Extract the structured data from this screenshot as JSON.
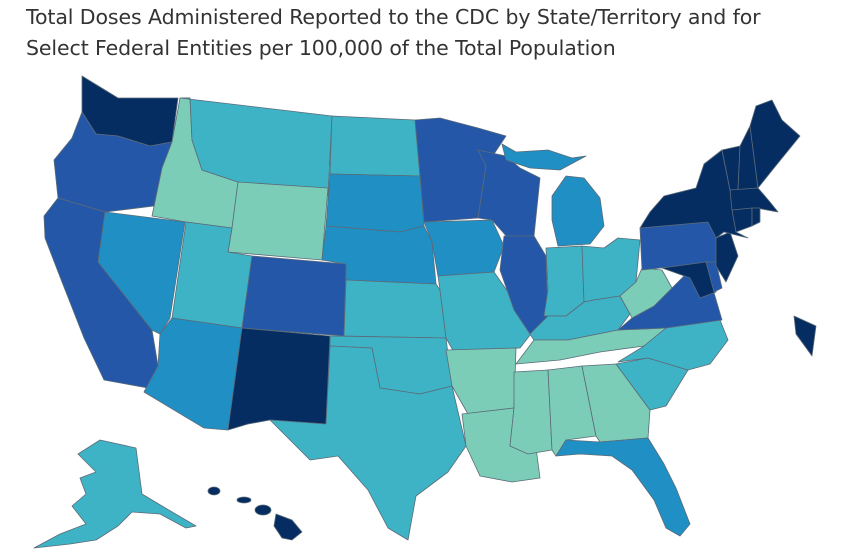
{
  "title_line_1": "Total Doses Administered Reported to the CDC by State/Territory and for",
  "title_line_2": "Select Federal Entities per 100,000 of the Total Population",
  "palette": {
    "lightest": "#7ccdb8",
    "light": "#3fb3c6",
    "medium": "#1f8fc4",
    "dark": "#2457a8",
    "darkest": "#052d62"
  },
  "states": [
    {
      "id": "WA",
      "shade": "darkest"
    },
    {
      "id": "OR",
      "shade": "dark"
    },
    {
      "id": "CA",
      "shade": "dark"
    },
    {
      "id": "NV",
      "shade": "medium"
    },
    {
      "id": "ID",
      "shade": "lightest"
    },
    {
      "id": "MT",
      "shade": "light"
    },
    {
      "id": "WY",
      "shade": "lightest"
    },
    {
      "id": "UT",
      "shade": "light"
    },
    {
      "id": "AZ",
      "shade": "medium"
    },
    {
      "id": "CO",
      "shade": "dark"
    },
    {
      "id": "NM",
      "shade": "darkest"
    },
    {
      "id": "ND",
      "shade": "light"
    },
    {
      "id": "SD",
      "shade": "medium"
    },
    {
      "id": "NE",
      "shade": "medium"
    },
    {
      "id": "KS",
      "shade": "light"
    },
    {
      "id": "OK",
      "shade": "light"
    },
    {
      "id": "TX",
      "shade": "light"
    },
    {
      "id": "MN",
      "shade": "dark"
    },
    {
      "id": "IA",
      "shade": "medium"
    },
    {
      "id": "MO",
      "shade": "light"
    },
    {
      "id": "AR",
      "shade": "lightest"
    },
    {
      "id": "LA",
      "shade": "lightest"
    },
    {
      "id": "WI",
      "shade": "dark"
    },
    {
      "id": "IL",
      "shade": "dark"
    },
    {
      "id": "MI",
      "shade": "medium"
    },
    {
      "id": "IN",
      "shade": "light"
    },
    {
      "id": "OH",
      "shade": "light"
    },
    {
      "id": "KY",
      "shade": "light"
    },
    {
      "id": "TN",
      "shade": "lightest"
    },
    {
      "id": "MS",
      "shade": "lightest"
    },
    {
      "id": "AL",
      "shade": "lightest"
    },
    {
      "id": "GA",
      "shade": "lightest"
    },
    {
      "id": "FL",
      "shade": "medium"
    },
    {
      "id": "SC",
      "shade": "light"
    },
    {
      "id": "NC",
      "shade": "light"
    },
    {
      "id": "VA",
      "shade": "dark"
    },
    {
      "id": "WV",
      "shade": "lightest"
    },
    {
      "id": "PA",
      "shade": "dark"
    },
    {
      "id": "NY",
      "shade": "darkest"
    },
    {
      "id": "NJ",
      "shade": "darkest"
    },
    {
      "id": "MD",
      "shade": "darkest"
    },
    {
      "id": "DE",
      "shade": "dark"
    },
    {
      "id": "VT",
      "shade": "darkest"
    },
    {
      "id": "NH",
      "shade": "darkest"
    },
    {
      "id": "ME",
      "shade": "darkest"
    },
    {
      "id": "MA",
      "shade": "darkest"
    },
    {
      "id": "CT",
      "shade": "darkest"
    },
    {
      "id": "RI",
      "shade": "darkest"
    },
    {
      "id": "AK",
      "shade": "light"
    },
    {
      "id": "HI",
      "shade": "darkest"
    },
    {
      "id": "PR",
      "shade": "darkest"
    }
  ]
}
